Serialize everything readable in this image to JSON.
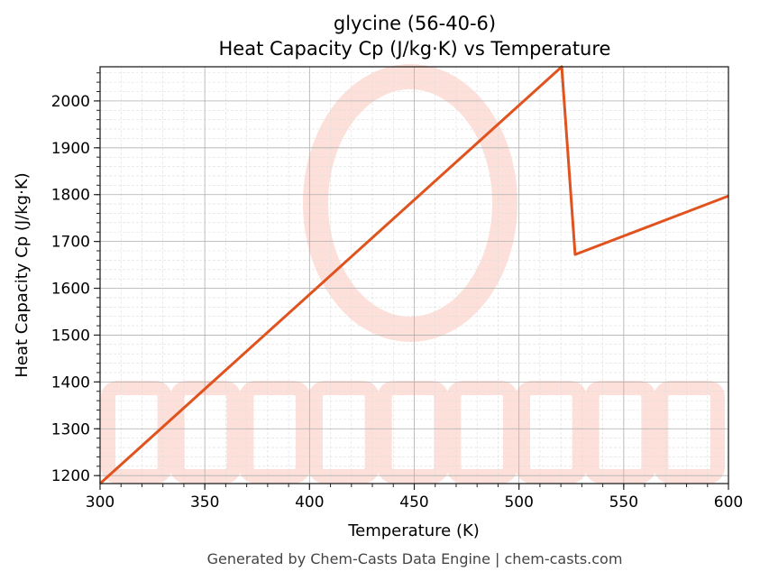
{
  "chart_data": {
    "type": "line",
    "title": "glycine (56-40-6)",
    "subtitle": "Heat Capacity Cp (J/kg·K) vs Temperature",
    "xlabel": "Temperature (K)",
    "ylabel": "Heat Capacity Cp (J/kg·K)",
    "xlim": [
      300,
      600
    ],
    "ylim": [
      1183,
      2073
    ],
    "xticks": [
      300,
      350,
      400,
      450,
      500,
      550,
      600
    ],
    "yticks": [
      1200,
      1300,
      1400,
      1500,
      1600,
      1700,
      1800,
      1900,
      2000
    ],
    "x_minor_step": 10,
    "y_minor_step": 20,
    "grid": true,
    "series": [
      {
        "color": "#e0531f",
        "points": [
          [
            300,
            1183
          ],
          [
            520.4,
            2073
          ],
          [
            526.8,
            1672
          ],
          [
            600,
            1797
          ]
        ]
      }
    ],
    "watermark": "CHEMCASTS",
    "watermark_color": "#fde0da"
  },
  "footer": "Generated by Chem-Casts Data Engine | chem-casts.com"
}
